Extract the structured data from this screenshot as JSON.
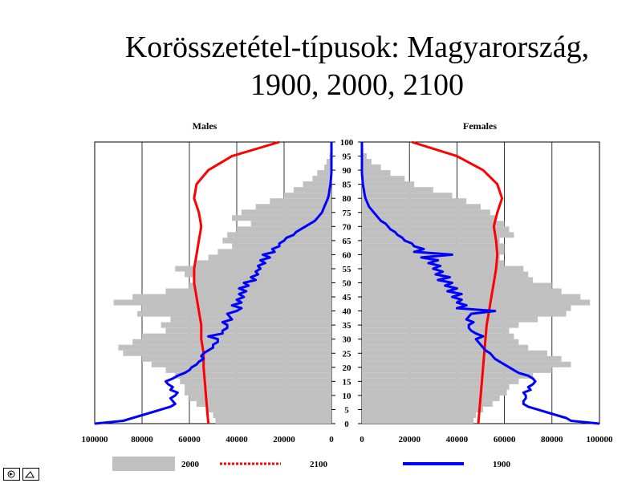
{
  "slide": {
    "title_line1": "Korösszetétel-típusok: Magyarország,",
    "title_line2": "1900, 2000, 2100"
  },
  "nav": {
    "icons": [
      "back-icon",
      "forward-icon"
    ]
  },
  "chart_data": {
    "type": "bar",
    "panels": [
      "Males",
      "Females"
    ],
    "x_ticks_males": [
      "100000",
      "80000",
      "60000",
      "40000",
      "20000",
      "0"
    ],
    "x_ticks_females": [
      "0",
      "20000",
      "40000",
      "60000",
      "80000",
      "100000"
    ],
    "age_ticks": [
      "0",
      "5",
      "10",
      "15",
      "20",
      "25",
      "30",
      "35",
      "40",
      "45",
      "50",
      "55",
      "60",
      "65",
      "70",
      "75",
      "80",
      "85",
      "90",
      "95",
      "100"
    ],
    "xlim": [
      0,
      100000
    ],
    "ylim": [
      0,
      100
    ],
    "legend": [
      {
        "label": "2000",
        "color": "#c0c0c0"
      },
      {
        "label": "2100",
        "color": "#ff0000"
      },
      {
        "label": "1900",
        "color": "#0000ff"
      }
    ],
    "series": [
      {
        "name": "2000",
        "kind": "bars",
        "x": [
          0,
          2,
          4,
          6,
          8,
          10,
          12,
          14,
          16,
          18,
          20,
          22,
          24,
          26,
          28,
          30,
          32,
          34,
          36,
          38,
          40,
          42,
          44,
          46,
          48,
          50,
          52,
          54,
          56,
          58,
          60,
          62,
          64,
          66,
          68,
          70,
          72,
          74,
          76,
          78,
          80,
          82,
          84,
          86,
          88,
          90,
          92,
          94,
          96,
          98,
          100
        ],
        "males": [
          49000,
          50000,
          53000,
          57000,
          60000,
          62000,
          62000,
          64000,
          66000,
          70000,
          76000,
          80000,
          88000,
          90000,
          84000,
          80000,
          70000,
          72000,
          68000,
          82000,
          80000,
          92000,
          84000,
          70000,
          60000,
          58000,
          62000,
          66000,
          58000,
          52000,
          48000,
          42000,
          46000,
          44000,
          40000,
          34000,
          42000,
          38000,
          32000,
          26000,
          20000,
          16000,
          12000,
          8000,
          6000,
          3000,
          2000,
          800,
          400,
          100,
          0
        ],
        "females": [
          47000,
          48000,
          51000,
          55000,
          58000,
          61000,
          62000,
          66000,
          72000,
          80000,
          88000,
          84000,
          78000,
          70000,
          66000,
          64000,
          62000,
          66000,
          74000,
          86000,
          88000,
          96000,
          92000,
          84000,
          80000,
          72000,
          70000,
          68000,
          60000,
          58000,
          60000,
          60000,
          58000,
          64000,
          62000,
          60000,
          56000,
          54000,
          50000,
          44000,
          38000,
          30000,
          22000,
          18000,
          12000,
          8000,
          4000,
          2000,
          600,
          200,
          0
        ]
      },
      {
        "name": "2100",
        "kind": "line",
        "x": [
          0,
          5,
          10,
          15,
          20,
          25,
          30,
          35,
          40,
          45,
          50,
          55,
          60,
          65,
          70,
          75,
          80,
          85,
          90,
          95,
          100
        ],
        "males": [
          52000,
          52500,
          53000,
          53500,
          54000,
          54000,
          55000,
          55000,
          56000,
          57000,
          58000,
          58000,
          57000,
          56000,
          55000,
          56000,
          58000,
          57000,
          52000,
          42000,
          22000
        ],
        "females": [
          49000,
          49500,
          50000,
          50500,
          51000,
          51500,
          52000,
          52500,
          53500,
          54500,
          55500,
          56500,
          57000,
          56500,
          55500,
          57000,
          59000,
          57000,
          51000,
          40000,
          21000
        ]
      },
      {
        "name": "1900",
        "kind": "line",
        "x": [
          0,
          1,
          2,
          3,
          4,
          5,
          6,
          7,
          8,
          9,
          10,
          11,
          12,
          13,
          14,
          15,
          16,
          17,
          18,
          19,
          20,
          21,
          22,
          23,
          24,
          25,
          26,
          27,
          28,
          29,
          30,
          31,
          32,
          33,
          34,
          35,
          36,
          37,
          38,
          39,
          40,
          41,
          42,
          43,
          44,
          45,
          46,
          47,
          48,
          49,
          50,
          51,
          52,
          53,
          54,
          55,
          56,
          57,
          58,
          59,
          60,
          61,
          62,
          63,
          64,
          65,
          66,
          67,
          68,
          69,
          70,
          71,
          72,
          73,
          74,
          75,
          76,
          77,
          78,
          79,
          80,
          81,
          82,
          83,
          84,
          85,
          86,
          87,
          88,
          89,
          90,
          91,
          92,
          93,
          94,
          95,
          96,
          97,
          98,
          99,
          100
        ],
        "males": [
          100000,
          88000,
          84000,
          80000,
          76000,
          72000,
          68000,
          66000,
          67000,
          68000,
          66000,
          65000,
          68000,
          67000,
          69000,
          70000,
          67000,
          65000,
          62000,
          60000,
          59000,
          57000,
          56000,
          54000,
          55000,
          54000,
          52000,
          50000,
          50000,
          48000,
          48000,
          52000,
          46000,
          46000,
          44000,
          44000,
          46000,
          42000,
          43000,
          44000,
          40000,
          38000,
          42000,
          38000,
          40000,
          37000,
          39000,
          36000,
          39000,
          35000,
          37000,
          32000,
          34000,
          31000,
          32000,
          30000,
          31000,
          28000,
          30000,
          26000,
          29000,
          24000,
          25000,
          22000,
          22000,
          20000,
          19000,
          16000,
          15000,
          13000,
          11000,
          9000,
          7000,
          6000,
          5000,
          4000,
          3500,
          3000,
          2500,
          2000,
          1500,
          1200,
          1000,
          800,
          600,
          400,
          300,
          200,
          100,
          0,
          0,
          0,
          0,
          0,
          0,
          0,
          0,
          0,
          0,
          0,
          0
        ],
        "females": [
          100000,
          88000,
          86000,
          82000,
          78000,
          74000,
          70000,
          68000,
          68000,
          69000,
          69000,
          68000,
          71000,
          70000,
          72000,
          73000,
          72000,
          70000,
          66000,
          64000,
          62000,
          60000,
          58000,
          56000,
          55000,
          54000,
          52000,
          51000,
          50000,
          49000,
          48000,
          51000,
          48000,
          46000,
          45000,
          45000,
          47000,
          44000,
          45000,
          46000,
          56000,
          40000,
          44000,
          40000,
          42000,
          38000,
          42000,
          36000,
          40000,
          35000,
          38000,
          32000,
          37000,
          31000,
          34000,
          30000,
          33000,
          28000,
          32000,
          25000,
          38000,
          22000,
          26000,
          22000,
          21000,
          18000,
          17000,
          15000,
          14000,
          12000,
          11000,
          10000,
          8000,
          7000,
          6000,
          5000,
          4000,
          3000,
          2500,
          2000,
          1500,
          1200,
          1000,
          800,
          600,
          400,
          300,
          200,
          100,
          0,
          0,
          0,
          0,
          0,
          0,
          0,
          0,
          0,
          0,
          0,
          0
        ]
      }
    ]
  }
}
